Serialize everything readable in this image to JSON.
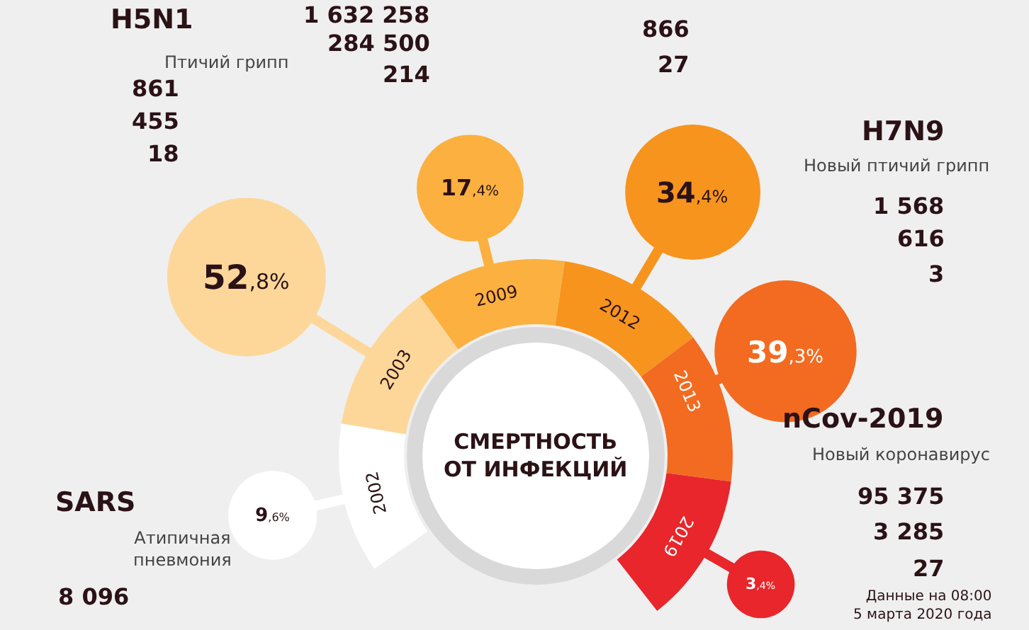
{
  "chart_data": {
    "type": "other",
    "title": "СМЕРТНОСТЬ\nОТ ИНФЕКЦИЙ",
    "categories": [
      "2002",
      "2003",
      "2009",
      "2012",
      "2013",
      "2019"
    ],
    "values": [
      9.6,
      52.8,
      17.4,
      34.4,
      39.3,
      3.4
    ],
    "value_labels": [
      "9,6%",
      "52,8%",
      "17,4%",
      "34,4%",
      "39,3%",
      "3,4%"
    ],
    "colors": [
      "#ffffff",
      "#fdd79a",
      "#fbb040",
      "#f7941d",
      "#f26b21",
      "#e8262b"
    ],
    "annotations": [
      "H5N1",
      "Птичий грипп",
      "861",
      "455",
      "18",
      "1 632 258",
      "284 500",
      "214",
      "866",
      "27",
      "H7N9",
      "Новый птичий грипп",
      "1 568",
      "616",
      "3",
      "nCov-2019",
      "Новый коронавирус",
      "95 375",
      "3 285",
      "27",
      "Данные на 08:00\n5 марта 2020 года",
      "SARS",
      "Атипичная\nпневмония",
      "8 096"
    ]
  }
}
